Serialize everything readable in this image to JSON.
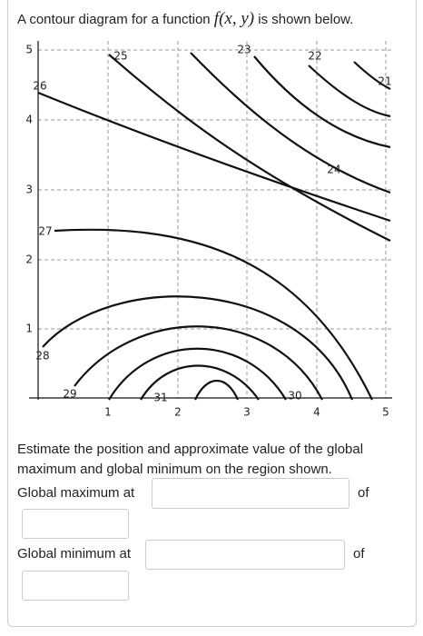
{
  "question": {
    "intro_before": "A contour diagram for a function",
    "function": "f(x, y)",
    "intro_after": "is shown below.",
    "instructions": "Estimate the position and approximate value of the global maximum and global minimum on the region shown."
  },
  "plot": {
    "xticks": [
      1,
      2,
      3,
      4,
      5
    ],
    "yticks": [
      1,
      2,
      3,
      4,
      5
    ],
    "contour_labels": [
      25,
      23,
      22,
      21,
      26,
      24,
      27,
      28,
      29,
      31,
      30
    ]
  },
  "answers": {
    "max_label": "Global maximum at",
    "max_of": "of",
    "min_label": "Global minimum at",
    "min_of": "of"
  }
}
